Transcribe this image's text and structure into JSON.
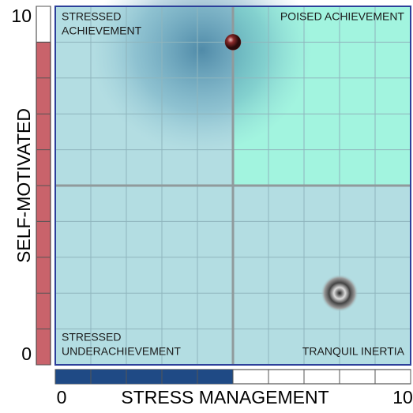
{
  "chart_data": {
    "type": "quadrant",
    "xlabel": "STRESS MANAGEMENT",
    "ylabel": "SELF-MOTIVATED",
    "xlim": [
      0,
      10
    ],
    "ylim": [
      0,
      10
    ],
    "xticks": [
      0,
      10
    ],
    "yticks": [
      0,
      10
    ],
    "grid": true,
    "grid_step": 1,
    "quadrant_split": {
      "x": 5,
      "y": 5
    },
    "quadrants": [
      {
        "lines": [
          "STRESSED",
          "ACHIEVEMENT"
        ],
        "color": "#b3dde2"
      },
      {
        "lines": [
          "POISED ACHIEVEMENT"
        ],
        "color": "#a2f4df"
      },
      {
        "lines": [
          "STRESSED",
          "UNDERACHIEVEMENT"
        ],
        "color": "#b3dde2"
      },
      {
        "lines": [
          "TRANQUIL INERTIA"
        ],
        "color": "#b3dde2"
      }
    ],
    "marker": {
      "x": 5,
      "y": 9,
      "color": "#6b1f1f"
    },
    "target": {
      "x": 8,
      "y": 2
    },
    "y_bar_color": "#c9636b",
    "x_bar_color": "#1f4a85"
  }
}
